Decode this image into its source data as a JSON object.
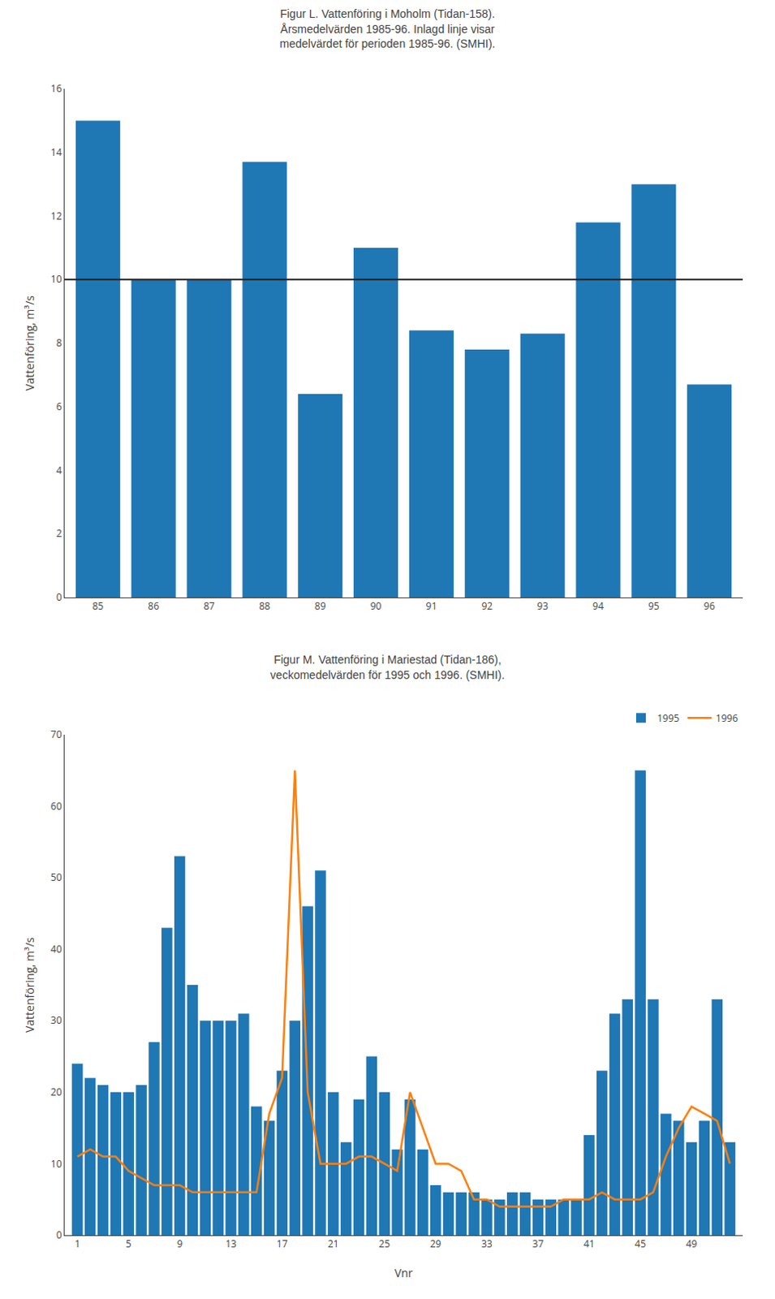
{
  "chart_data": [
    {
      "type": "bar",
      "title": "Figur L. Vattenföring i Moholm (Tidan-158).\nÅrsmedelvärden 1985-96. Inlagd linje visar\nmedelvärdet för perioden 1985-96. (SMHI).",
      "y_label": "Vattenföring, m³/s",
      "categories": [
        "85",
        "86",
        "87",
        "88",
        "89",
        "90",
        "91",
        "92",
        "93",
        "94",
        "95",
        "96"
      ],
      "values": [
        15.0,
        10.0,
        10.0,
        13.7,
        6.4,
        11.0,
        8.4,
        7.8,
        8.3,
        11.8,
        13.0,
        6.7
      ],
      "mean_line": 10.0,
      "ylim": [
        0,
        16
      ],
      "yticks": [
        0,
        2,
        4,
        6,
        8,
        10,
        12,
        14,
        16
      ],
      "grid": false
    },
    {
      "type": "bar",
      "title": "Figur M. Vattenföring i Mariestad (Tidan-186),\nveckomedelvärden för 1995 och 1996. (SMHI).",
      "x_label": "Vnr",
      "y_label": "Vattenföring, m³/s",
      "x": [
        1,
        2,
        3,
        4,
        5,
        6,
        7,
        8,
        9,
        10,
        11,
        12,
        13,
        14,
        15,
        16,
        17,
        18,
        19,
        20,
        21,
        22,
        23,
        24,
        25,
        26,
        27,
        28,
        29,
        30,
        31,
        32,
        33,
        34,
        35,
        36,
        37,
        38,
        39,
        40,
        41,
        42,
        43,
        44,
        45,
        46,
        47,
        48,
        49,
        50,
        51,
        52
      ],
      "series": [
        {
          "name": "1995",
          "type": "bar",
          "values": [
            24,
            22,
            21,
            20,
            20,
            21,
            27,
            43,
            53,
            35,
            30,
            30,
            30,
            31,
            18,
            16,
            23,
            30,
            46,
            51,
            20,
            13,
            19,
            25,
            20,
            12,
            19,
            12,
            7,
            6,
            6,
            6,
            5,
            5,
            6,
            6,
            5,
            5,
            5,
            5,
            14,
            23,
            31,
            33,
            65,
            33,
            17,
            16,
            13,
            16,
            33,
            13
          ]
        },
        {
          "name": "1996",
          "type": "line",
          "values": [
            11,
            12,
            11,
            11,
            9,
            8,
            7,
            7,
            7,
            6,
            6,
            6,
            6,
            6,
            6,
            17,
            22,
            65,
            20,
            10,
            10,
            10,
            11,
            11,
            10,
            9,
            20,
            15,
            10,
            10,
            9,
            5,
            5,
            4,
            4,
            4,
            4,
            4,
            5,
            5,
            5,
            6,
            5,
            5,
            5,
            6,
            11,
            15,
            18,
            17,
            16,
            10
          ]
        }
      ],
      "xlim": [
        0,
        53
      ],
      "xticks": [
        1,
        5,
        9,
        13,
        17,
        21,
        25,
        29,
        33,
        37,
        41,
        45,
        49
      ],
      "ylim": [
        0,
        70
      ],
      "yticks": [
        0,
        10,
        20,
        30,
        40,
        50,
        60,
        70
      ],
      "legend": "upper right",
      "grid": false
    }
  ]
}
